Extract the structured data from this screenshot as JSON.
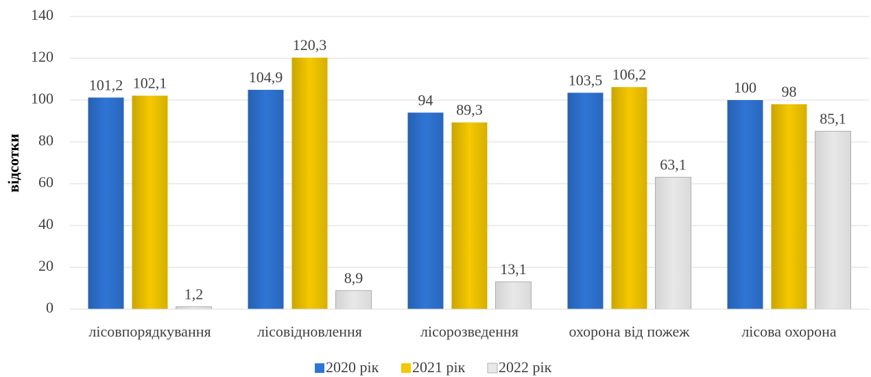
{
  "chart_data": {
    "type": "bar",
    "y_label": "відсотки",
    "categories": [
      "лісовпорядкування",
      "лісовідновлення",
      "лісорозведення",
      "охорона від пожеж",
      "лісова охорона"
    ],
    "series": [
      {
        "name": "2020 рік",
        "color": "#2f75d6",
        "values": [
          101.2,
          104.9,
          94,
          103.5,
          100
        ],
        "value_labels": [
          "101,2",
          "104,9",
          "94",
          "103,5",
          "100"
        ]
      },
      {
        "name": "2021 рік",
        "color": "#f5c800",
        "values": [
          102.1,
          120.3,
          89.3,
          106.2,
          98
        ],
        "value_labels": [
          "102,1",
          "120,3",
          "89,3",
          "106,2",
          "98"
        ]
      },
      {
        "name": "2022 рік",
        "color": "#e8e8e8",
        "values": [
          1.2,
          8.9,
          13.1,
          63.1,
          85.1
        ],
        "value_labels": [
          "1,2",
          "8,9",
          "13,1",
          "63,1",
          "85,1"
        ]
      }
    ],
    "ylim": [
      0,
      140
    ],
    "yticks": [
      0,
      20,
      40,
      60,
      80,
      100,
      120,
      140
    ],
    "grid": true,
    "legend": "bottom"
  }
}
